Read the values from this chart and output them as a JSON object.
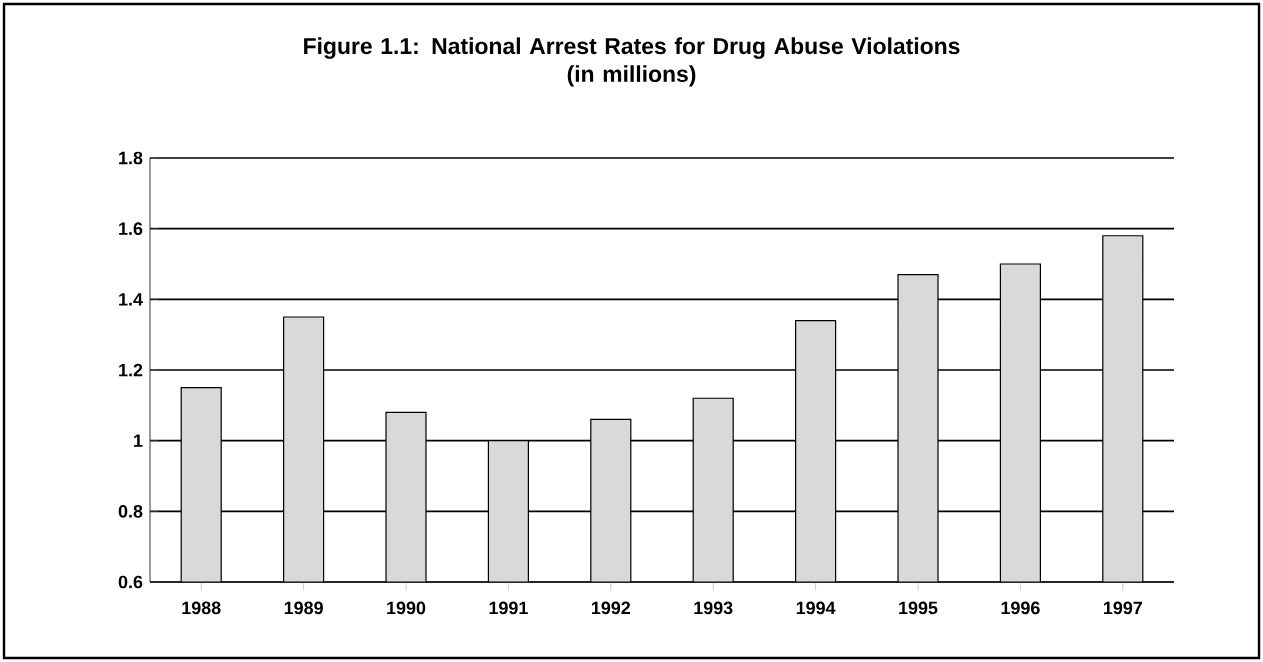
{
  "chart_data": {
    "type": "bar",
    "title": "Figure 1.1: National Arrest Rates for Drug Abuse Violations\n(in millions)",
    "categories": [
      "1988",
      "1989",
      "1990",
      "1991",
      "1992",
      "1993",
      "1994",
      "1995",
      "1996",
      "1997"
    ],
    "values": [
      1.15,
      1.35,
      1.08,
      1.0,
      1.06,
      1.12,
      1.34,
      1.47,
      1.5,
      1.58
    ],
    "color": "#d9d9d9",
    "ylim": [
      0.6,
      1.8
    ],
    "yticks": [
      0.6,
      0.8,
      1,
      1.2,
      1.4,
      1.6,
      1.8
    ],
    "grid": "y"
  }
}
